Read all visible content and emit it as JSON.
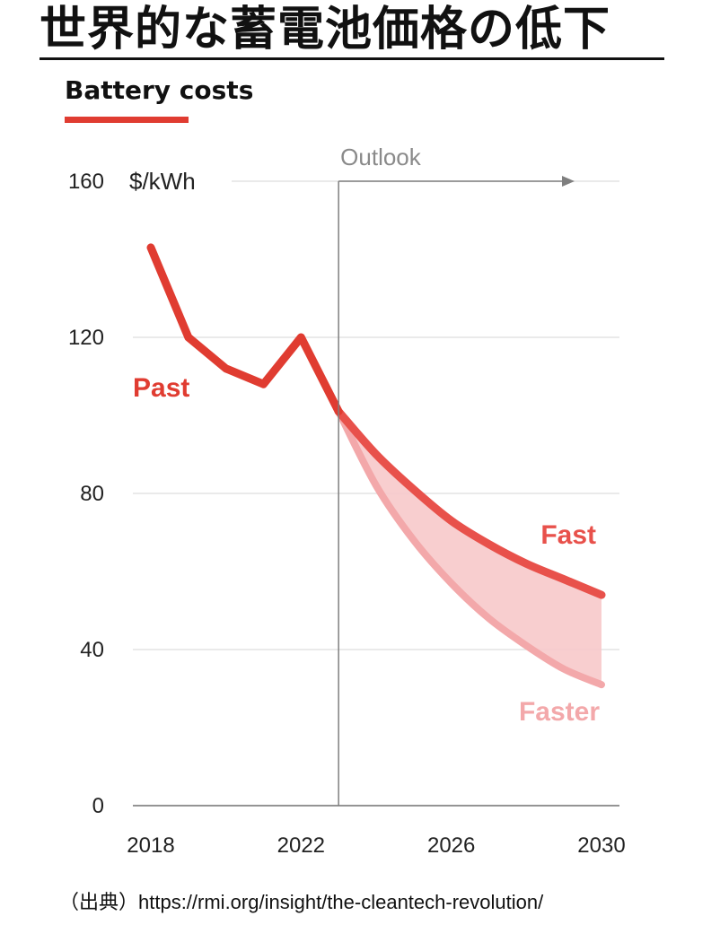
{
  "page_title": "世界的な蓄電池価格の低下",
  "source": "（出典）https://rmi.org/insight/the-cleantech-revolution/",
  "colors": {
    "past": "#e03c31",
    "fast": "#e8514b",
    "faster": "#f3a8aa",
    "band": "#f7c9ca",
    "axis": "#7f7f7f",
    "grid": "#e3e3e3"
  },
  "chart_data": {
    "type": "line",
    "title": "Battery costs",
    "ylabel": "$/kWh",
    "ylim": [
      0,
      160
    ],
    "xlim": [
      2018,
      2030
    ],
    "yticks": [
      "0",
      "40",
      "80",
      "120",
      "160"
    ],
    "xticks": [
      "2018",
      "2022",
      "2026",
      "2030"
    ],
    "annotation": "Outlook",
    "outlook_start": 2023,
    "series": [
      {
        "name": "Past",
        "x": [
          2018,
          2019,
          2020,
          2021,
          2022,
          2023
        ],
        "y": [
          143,
          120,
          112,
          108,
          120,
          101
        ]
      },
      {
        "name": "Fast",
        "x": [
          2023,
          2024,
          2025,
          2026,
          2027,
          2028,
          2029,
          2030
        ],
        "y": [
          101,
          90,
          81,
          73,
          67,
          62,
          58,
          54
        ]
      },
      {
        "name": "Faster",
        "x": [
          2023,
          2024,
          2025,
          2026,
          2027,
          2028,
          2029,
          2030
        ],
        "y": [
          101,
          82,
          68,
          57,
          48,
          41,
          35,
          31
        ]
      }
    ]
  }
}
